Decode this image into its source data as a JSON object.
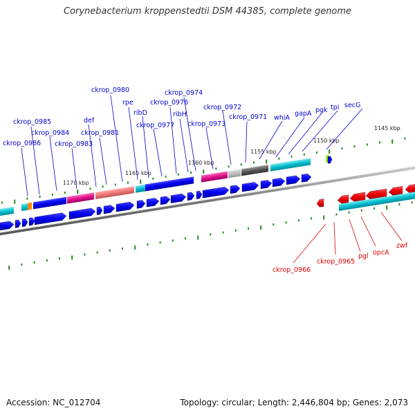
{
  "title": "Corynebacterium kroppenstedtii DSM 44385, complete genome",
  "accession": "Accession: NC_012704",
  "summary": "Topology: circular; Length: 2,446,804 bp; Genes: 2,073",
  "kbp_labels": [
    "1145 kbp",
    "1150 kbp",
    "1155 kbp",
    "1160 kbp",
    "1165 kbp",
    "1170 kbp"
  ],
  "forward_genes": [
    "secG",
    "tpi",
    "pgk",
    "gapA",
    "whiA",
    "ckrop_0971",
    "ckrop_0972",
    "ckrop_0973",
    "ckrop_0974",
    "ribH",
    "ckrop_0976",
    "ckrop_0977",
    "ribD",
    "rpe",
    "ckrop_0980",
    "ckrop_0981",
    "def",
    "ckrop_0983",
    "ckrop_0984",
    "ckrop_0985",
    "ckrop_0986"
  ],
  "reverse_genes": [
    "zwf",
    "opcA",
    "pgl",
    "ckrop_0965",
    "ckrop_0966"
  ],
  "colors": {
    "forward": "#0000dd",
    "reverse": "#dd0000",
    "cds": "#0000ee",
    "cds_reverse": "#ee0000",
    "category_cyan": "#00bfcf",
    "category_magenta": "#dd1188",
    "category_salmon": "#ee7777",
    "category_gray": "#555555",
    "category_orange": "#ff8800",
    "category_lime": "#99ee00",
    "tick": "#228822",
    "backbone": "#888888"
  }
}
